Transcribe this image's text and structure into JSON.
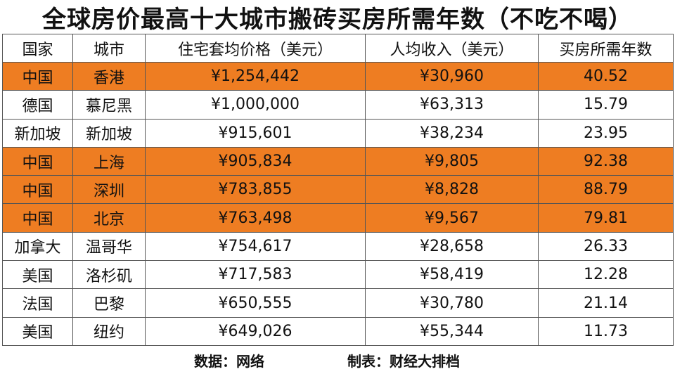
{
  "title": "全球房价最高十大城市搬砖买房所需年数（不吃不喝）",
  "columns": [
    "国家",
    "城市",
    "住宅套均价格（美元）",
    "人均收入（美元）",
    "买房所需年数"
  ],
  "highlight_color": "#ee7d22",
  "rows": [
    {
      "country": "中国",
      "city": "香港",
      "price": "¥1,254,442",
      "income": "¥30,960",
      "years": "40.52",
      "highlight": true
    },
    {
      "country": "德国",
      "city": "慕尼黑",
      "price": "¥1,000,000",
      "income": "¥63,313",
      "years": "15.79",
      "highlight": false
    },
    {
      "country": "新加坡",
      "city": "新加坡",
      "price": "¥915,601",
      "income": "¥38,234",
      "years": "23.95",
      "highlight": false
    },
    {
      "country": "中国",
      "city": "上海",
      "price": "¥905,834",
      "income": "¥9,805",
      "years": "92.38",
      "highlight": true
    },
    {
      "country": "中国",
      "city": "深圳",
      "price": "¥783,855",
      "income": "¥8,828",
      "years": "88.79",
      "highlight": true
    },
    {
      "country": "中国",
      "city": "北京",
      "price": "¥763,498",
      "income": "¥9,567",
      "years": "79.81",
      "highlight": true
    },
    {
      "country": "加拿大",
      "city": "温哥华",
      "price": "¥754,617",
      "income": "¥28,658",
      "years": "26.33",
      "highlight": false
    },
    {
      "country": "美国",
      "city": "洛杉矶",
      "price": "¥717,583",
      "income": "¥58,419",
      "years": "12.28",
      "highlight": false
    },
    {
      "country": "法国",
      "city": "巴黎",
      "price": "¥650,555",
      "income": "¥30,780",
      "years": "21.14",
      "highlight": false
    },
    {
      "country": "美国",
      "city": "纽约",
      "price": "¥649,026",
      "income": "¥55,344",
      "years": "11.73",
      "highlight": false
    }
  ],
  "footer": {
    "source": "数据：网络",
    "made_by": "制表：财经大排档"
  }
}
